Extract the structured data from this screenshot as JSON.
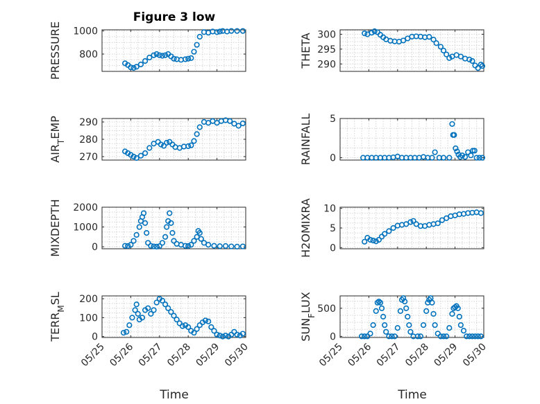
{
  "figure": {
    "title": "Figure 3 low",
    "xlabel": "Time",
    "marker_color": "#0072BD"
  },
  "chart_data": [
    {
      "type": "scatter",
      "ylabel": "PRESSURE",
      "ylabel_sub": "",
      "ylabel_after": "",
      "xlim": [
        0,
        5
      ],
      "ylim": [
        650,
        1010
      ],
      "yticks": [
        800,
        1000
      ],
      "grid": true,
      "points": [
        [
          0.8,
          720
        ],
        [
          0.9,
          705
        ],
        [
          1.0,
          685
        ],
        [
          1.1,
          680
        ],
        [
          1.2,
          690
        ],
        [
          1.35,
          710
        ],
        [
          1.5,
          740
        ],
        [
          1.65,
          770
        ],
        [
          1.8,
          790
        ],
        [
          1.9,
          800
        ],
        [
          2.0,
          790
        ],
        [
          2.1,
          785
        ],
        [
          2.2,
          790
        ],
        [
          2.3,
          800
        ],
        [
          2.4,
          780
        ],
        [
          2.5,
          760
        ],
        [
          2.6,
          755
        ],
        [
          2.75,
          750
        ],
        [
          2.9,
          755
        ],
        [
          3.0,
          760
        ],
        [
          3.1,
          765
        ],
        [
          3.2,
          820
        ],
        [
          3.3,
          880
        ],
        [
          3.4,
          950
        ],
        [
          3.55,
          990
        ],
        [
          3.7,
          985
        ],
        [
          3.85,
          995
        ],
        [
          4.0,
          990
        ],
        [
          4.1,
          995
        ],
        [
          4.2,
          1000
        ],
        [
          4.35,
          995
        ],
        [
          4.5,
          1000
        ],
        [
          4.7,
          1000
        ],
        [
          4.9,
          1000
        ]
      ]
    },
    {
      "type": "scatter",
      "ylabel": "THETA",
      "ylabel_sub": "",
      "ylabel_after": "",
      "xlim": [
        0,
        5
      ],
      "ylim": [
        287.5,
        301.5
      ],
      "yticks": [
        290,
        295,
        300
      ],
      "grid": true,
      "points": [
        [
          0.85,
          300.3
        ],
        [
          0.95,
          300.0
        ],
        [
          1.1,
          300.5
        ],
        [
          1.2,
          301.0
        ],
        [
          1.3,
          300.7
        ],
        [
          1.4,
          299.8
        ],
        [
          1.5,
          299.0
        ],
        [
          1.6,
          298.3
        ],
        [
          1.75,
          297.8
        ],
        [
          1.9,
          297.6
        ],
        [
          2.05,
          297.5
        ],
        [
          2.2,
          297.9
        ],
        [
          2.35,
          298.6
        ],
        [
          2.5,
          299.2
        ],
        [
          2.65,
          299.3
        ],
        [
          2.8,
          299.2
        ],
        [
          2.95,
          299.0
        ],
        [
          3.1,
          299.1
        ],
        [
          3.25,
          298.2
        ],
        [
          3.35,
          297.0
        ],
        [
          3.5,
          295.8
        ],
        [
          3.6,
          294.5
        ],
        [
          3.7,
          293.2
        ],
        [
          3.8,
          292.0
        ],
        [
          3.9,
          292.5
        ],
        [
          4.05,
          293.0
        ],
        [
          4.2,
          292.5
        ],
        [
          4.35,
          291.8
        ],
        [
          4.5,
          291.5
        ],
        [
          4.6,
          291.0
        ],
        [
          4.7,
          289.5
        ],
        [
          4.8,
          288.6
        ],
        [
          4.9,
          289.8
        ],
        [
          4.95,
          289.3
        ]
      ]
    },
    {
      "type": "scatter",
      "ylabel": "AIR",
      "ylabel_sub": "T",
      "ylabel_after": "EMP",
      "xlim": [
        0,
        5
      ],
      "ylim": [
        268,
        292
      ],
      "yticks": [
        270,
        280,
        290
      ],
      "grid": true,
      "points": [
        [
          0.8,
          273.0
        ],
        [
          0.9,
          272.0
        ],
        [
          1.0,
          271.0
        ],
        [
          1.1,
          270.0
        ],
        [
          1.2,
          269.2
        ],
        [
          1.35,
          270.5
        ],
        [
          1.5,
          272.0
        ],
        [
          1.65,
          275.0
        ],
        [
          1.8,
          277.5
        ],
        [
          1.95,
          278.5
        ],
        [
          2.05,
          277.0
        ],
        [
          2.15,
          276.2
        ],
        [
          2.25,
          278.0
        ],
        [
          2.35,
          278.5
        ],
        [
          2.45,
          277.0
        ],
        [
          2.55,
          275.5
        ],
        [
          2.7,
          275.0
        ],
        [
          2.85,
          275.8
        ],
        [
          3.0,
          276.0
        ],
        [
          3.1,
          276.5
        ],
        [
          3.2,
          279.0
        ],
        [
          3.3,
          283.0
        ],
        [
          3.4,
          287.0
        ],
        [
          3.55,
          290.0
        ],
        [
          3.7,
          289.5
        ],
        [
          3.85,
          290.5
        ],
        [
          4.0,
          289.5
        ],
        [
          4.15,
          290.5
        ],
        [
          4.3,
          291.0
        ],
        [
          4.45,
          290.5
        ],
        [
          4.6,
          289.0
        ],
        [
          4.75,
          287.8
        ],
        [
          4.9,
          289.2
        ]
      ]
    },
    {
      "type": "scatter",
      "ylabel": "RAINFALL",
      "ylabel_sub": "",
      "ylabel_after": "",
      "xlim": [
        0,
        5
      ],
      "ylim": [
        -0.3,
        5
      ],
      "yticks": [
        0,
        5
      ],
      "grid": true,
      "points": [
        [
          0.8,
          0
        ],
        [
          0.95,
          0
        ],
        [
          1.1,
          0
        ],
        [
          1.25,
          0
        ],
        [
          1.4,
          0
        ],
        [
          1.55,
          0
        ],
        [
          1.7,
          0
        ],
        [
          1.85,
          0.05
        ],
        [
          2.0,
          0.15
        ],
        [
          2.15,
          0
        ],
        [
          2.3,
          0
        ],
        [
          2.45,
          0
        ],
        [
          2.6,
          0
        ],
        [
          2.75,
          0
        ],
        [
          2.9,
          0.1
        ],
        [
          3.05,
          0
        ],
        [
          3.2,
          0
        ],
        [
          3.3,
          0.7
        ],
        [
          3.45,
          0
        ],
        [
          3.6,
          0
        ],
        [
          3.8,
          0
        ],
        [
          3.9,
          4.3
        ],
        [
          3.93,
          2.9
        ],
        [
          3.97,
          2.9
        ],
        [
          4.02,
          1.2
        ],
        [
          4.07,
          0.8
        ],
        [
          4.12,
          0.4
        ],
        [
          4.18,
          0.1
        ],
        [
          4.25,
          0.3
        ],
        [
          4.35,
          0.1
        ],
        [
          4.45,
          0.7
        ],
        [
          4.55,
          0.3
        ],
        [
          4.62,
          0.9
        ],
        [
          4.68,
          0.9
        ],
        [
          4.75,
          0
        ],
        [
          4.85,
          0
        ],
        [
          4.95,
          0
        ]
      ]
    },
    {
      "type": "scatter",
      "ylabel": "MIXDEPTH",
      "ylabel_sub": "",
      "ylabel_after": "",
      "xlim": [
        0,
        5
      ],
      "ylim": [
        -100,
        2000
      ],
      "yticks": [
        0,
        1000,
        2000
      ],
      "grid": true,
      "points": [
        [
          0.8,
          50
        ],
        [
          0.9,
          40
        ],
        [
          1.0,
          100
        ],
        [
          1.1,
          300
        ],
        [
          1.2,
          600
        ],
        [
          1.3,
          1000
        ],
        [
          1.35,
          1300
        ],
        [
          1.4,
          1500
        ],
        [
          1.45,
          1700
        ],
        [
          1.5,
          1200
        ],
        [
          1.55,
          700
        ],
        [
          1.6,
          200
        ],
        [
          1.7,
          50
        ],
        [
          1.8,
          20
        ],
        [
          1.9,
          10
        ],
        [
          2.0,
          30
        ],
        [
          2.1,
          200
        ],
        [
          2.2,
          500
        ],
        [
          2.25,
          1000
        ],
        [
          2.3,
          1300
        ],
        [
          2.35,
          1700
        ],
        [
          2.4,
          1200
        ],
        [
          2.45,
          700
        ],
        [
          2.5,
          300
        ],
        [
          2.6,
          150
        ],
        [
          2.75,
          100
        ],
        [
          2.9,
          50
        ],
        [
          3.0,
          40
        ],
        [
          3.1,
          100
        ],
        [
          3.2,
          300
        ],
        [
          3.3,
          500
        ],
        [
          3.35,
          800
        ],
        [
          3.4,
          700
        ],
        [
          3.45,
          400
        ],
        [
          3.55,
          200
        ],
        [
          3.7,
          100
        ],
        [
          3.9,
          50
        ],
        [
          4.1,
          30
        ],
        [
          4.3,
          40
        ],
        [
          4.5,
          20
        ],
        [
          4.7,
          10
        ],
        [
          4.9,
          20
        ]
      ]
    },
    {
      "type": "scatter",
      "ylabel": "H2OMIXRA",
      "ylabel_sub": "",
      "ylabel_after": "",
      "xlim": [
        0,
        5
      ],
      "ylim": [
        -0.3,
        10.3
      ],
      "yticks": [
        0,
        5,
        10
      ],
      "grid": true,
      "points": [
        [
          0.85,
          1.5
        ],
        [
          0.95,
          2.5
        ],
        [
          1.05,
          2.0
        ],
        [
          1.15,
          1.8
        ],
        [
          1.25,
          1.6
        ],
        [
          1.35,
          2.0
        ],
        [
          1.45,
          2.8
        ],
        [
          1.55,
          3.5
        ],
        [
          1.7,
          4.2
        ],
        [
          1.85,
          5.0
        ],
        [
          2.0,
          5.6
        ],
        [
          2.15,
          5.8
        ],
        [
          2.3,
          6.0
        ],
        [
          2.45,
          6.5
        ],
        [
          2.55,
          6.8
        ],
        [
          2.65,
          6.0
        ],
        [
          2.8,
          5.5
        ],
        [
          2.95,
          5.5
        ],
        [
          3.1,
          5.8
        ],
        [
          3.25,
          6.0
        ],
        [
          3.4,
          6.2
        ],
        [
          3.55,
          7.0
        ],
        [
          3.7,
          7.5
        ],
        [
          3.85,
          8.0
        ],
        [
          4.0,
          8.2
        ],
        [
          4.15,
          8.5
        ],
        [
          4.3,
          8.6
        ],
        [
          4.45,
          8.8
        ],
        [
          4.6,
          8.9
        ],
        [
          4.75,
          9.0
        ],
        [
          4.9,
          8.8
        ]
      ]
    },
    {
      "type": "scatter",
      "ylabel": "TERR",
      "ylabel_sub": "M",
      "ylabel_after": "SL",
      "xlim": [
        0,
        5
      ],
      "ylim": [
        -5,
        215
      ],
      "yticks": [
        0,
        100,
        200
      ],
      "grid": true,
      "points": [
        [
          0.75,
          20
        ],
        [
          0.85,
          25
        ],
        [
          0.95,
          60
        ],
        [
          1.05,
          100
        ],
        [
          1.15,
          140
        ],
        [
          1.2,
          170
        ],
        [
          1.25,
          120
        ],
        [
          1.3,
          90
        ],
        [
          1.4,
          100
        ],
        [
          1.5,
          140
        ],
        [
          1.6,
          150
        ],
        [
          1.7,
          120
        ],
        [
          1.8,
          140
        ],
        [
          1.9,
          180
        ],
        [
          2.0,
          200
        ],
        [
          2.1,
          190
        ],
        [
          2.2,
          170
        ],
        [
          2.3,
          150
        ],
        [
          2.4,
          130
        ],
        [
          2.5,
          110
        ],
        [
          2.6,
          90
        ],
        [
          2.7,
          70
        ],
        [
          2.8,
          55
        ],
        [
          2.9,
          60
        ],
        [
          3.0,
          50
        ],
        [
          3.1,
          30
        ],
        [
          3.2,
          20
        ],
        [
          3.3,
          40
        ],
        [
          3.4,
          60
        ],
        [
          3.5,
          75
        ],
        [
          3.6,
          85
        ],
        [
          3.7,
          80
        ],
        [
          3.8,
          50
        ],
        [
          3.9,
          30
        ],
        [
          4.0,
          10
        ],
        [
          4.1,
          5
        ],
        [
          4.2,
          0
        ],
        [
          4.3,
          5
        ],
        [
          4.4,
          0
        ],
        [
          4.5,
          10
        ],
        [
          4.6,
          25
        ],
        [
          4.7,
          10
        ],
        [
          4.8,
          5
        ],
        [
          4.9,
          15
        ]
      ]
    },
    {
      "type": "scatter",
      "ylabel": "SUN",
      "ylabel_sub": "F",
      "ylabel_after": "LUX",
      "xlim": [
        0,
        5
      ],
      "ylim": [
        -20,
        720
      ],
      "yticks": [
        0,
        500
      ],
      "grid": true,
      "points": [
        [
          0.75,
          0
        ],
        [
          0.85,
          0
        ],
        [
          0.95,
          0
        ],
        [
          1.05,
          50
        ],
        [
          1.15,
          200
        ],
        [
          1.25,
          450
        ],
        [
          1.3,
          600
        ],
        [
          1.35,
          620
        ],
        [
          1.4,
          600
        ],
        [
          1.45,
          500
        ],
        [
          1.5,
          350
        ],
        [
          1.55,
          200
        ],
        [
          1.6,
          80
        ],
        [
          1.7,
          0
        ],
        [
          1.8,
          0
        ],
        [
          1.9,
          0
        ],
        [
          2.0,
          150
        ],
        [
          2.1,
          450
        ],
        [
          2.15,
          650
        ],
        [
          2.2,
          680
        ],
        [
          2.25,
          620
        ],
        [
          2.3,
          500
        ],
        [
          2.35,
          350
        ],
        [
          2.4,
          200
        ],
        [
          2.45,
          80
        ],
        [
          2.55,
          0
        ],
        [
          2.7,
          0
        ],
        [
          2.8,
          0
        ],
        [
          2.9,
          200
        ],
        [
          3.0,
          450
        ],
        [
          3.05,
          600
        ],
        [
          3.1,
          650
        ],
        [
          3.15,
          680
        ],
        [
          3.2,
          600
        ],
        [
          3.25,
          400
        ],
        [
          3.3,
          200
        ],
        [
          3.4,
          50
        ],
        [
          3.5,
          0
        ],
        [
          3.6,
          0
        ],
        [
          3.7,
          0
        ],
        [
          3.8,
          150
        ],
        [
          3.9,
          400
        ],
        [
          3.95,
          500
        ],
        [
          4.0,
          520
        ],
        [
          4.05,
          540
        ],
        [
          4.1,
          500
        ],
        [
          4.15,
          350
        ],
        [
          4.2,
          200
        ],
        [
          4.3,
          100
        ],
        [
          4.4,
          0
        ],
        [
          4.5,
          0
        ],
        [
          4.6,
          0
        ],
        [
          4.7,
          0
        ],
        [
          4.8,
          0
        ],
        [
          4.9,
          0
        ]
      ]
    }
  ],
  "xaxis": {
    "tick_labels": [
      "05/25",
      "05/26",
      "05/27",
      "05/28",
      "05/29",
      "05/30"
    ]
  }
}
